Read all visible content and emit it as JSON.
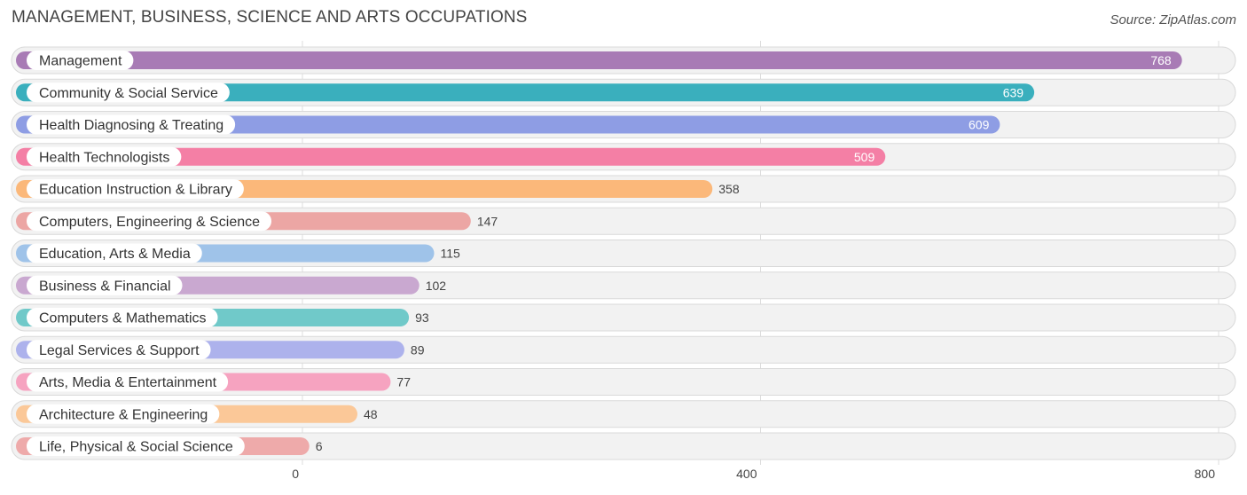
{
  "chart_data": {
    "type": "bar",
    "orientation": "horizontal",
    "title": "MANAGEMENT, BUSINESS, SCIENCE AND ARTS OCCUPATIONS",
    "source": "Source: ZipAtlas.com",
    "categories": [
      "Management",
      "Community & Social Service",
      "Health Diagnosing & Treating",
      "Health Technologists",
      "Education Instruction & Library",
      "Computers, Engineering & Science",
      "Education, Arts & Media",
      "Business & Financial",
      "Computers & Mathematics",
      "Legal Services & Support",
      "Arts, Media & Entertainment",
      "Architecture & Engineering",
      "Life, Physical & Social Science"
    ],
    "values": [
      768,
      639,
      609,
      509,
      358,
      147,
      115,
      102,
      93,
      89,
      77,
      48,
      6
    ],
    "colors": [
      "#a87bb5",
      "#3aafbd",
      "#8e9de4",
      "#f47fa5",
      "#fbb87a",
      "#eca6a4",
      "#9fc3e9",
      "#c9a8d0",
      "#70c9c9",
      "#adb2ec",
      "#f6a3c0",
      "#fbc898",
      "#eeaaaa"
    ],
    "x_ticks": [
      0,
      400,
      800
    ],
    "x_tick_labels": [
      "0",
      "400",
      "800"
    ],
    "xlim": [
      0,
      800
    ],
    "grid": true,
    "xlabel": "",
    "ylabel": ""
  }
}
